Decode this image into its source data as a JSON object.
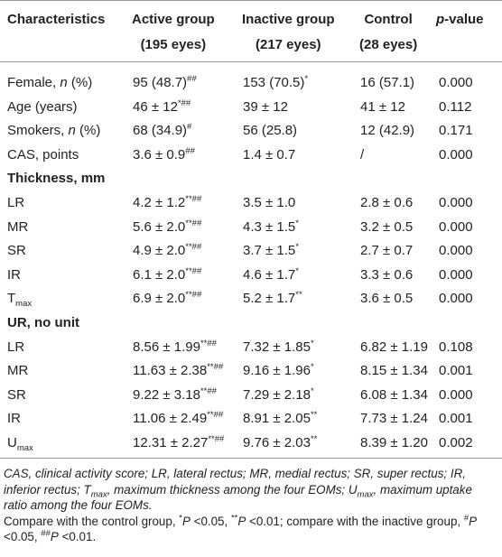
{
  "table": {
    "header": [
      [
        [
          {
            "t": "Characteristics"
          }
        ]
      ],
      [
        [
          {
            "t": "Active group"
          }
        ],
        [
          {
            "t": "(195 eyes)"
          }
        ]
      ],
      [
        [
          {
            "t": "Inactive group"
          }
        ],
        [
          {
            "t": "(217 eyes)"
          }
        ]
      ],
      [
        [
          {
            "t": "Control"
          }
        ],
        [
          {
            "t": "(28 eyes)"
          }
        ]
      ],
      [
        [
          {
            "t": "p",
            "s": "i"
          },
          {
            "t": "-value"
          }
        ]
      ]
    ],
    "rows": [
      {
        "cells": [
          [
            {
              "t": "Female, "
            },
            {
              "t": "n",
              "s": "i"
            },
            {
              "t": " (%)"
            }
          ],
          [
            {
              "t": "95 (48.7)"
            },
            {
              "t": "##",
              "s": "sup"
            }
          ],
          [
            {
              "t": "153 (70.5)"
            },
            {
              "t": "*",
              "s": "sup"
            }
          ],
          [
            {
              "t": "16 (57.1)"
            }
          ],
          [
            {
              "t": "0.000"
            }
          ]
        ]
      },
      {
        "cells": [
          [
            {
              "t": "Age (years)"
            }
          ],
          [
            {
              "t": "46 ± 12"
            },
            {
              "t": "*##",
              "s": "sup"
            }
          ],
          [
            {
              "t": "39 ± 12"
            }
          ],
          [
            {
              "t": "41 ± 12"
            }
          ],
          [
            {
              "t": "0.112"
            }
          ]
        ]
      },
      {
        "cells": [
          [
            {
              "t": "Smokers, "
            },
            {
              "t": "n",
              "s": "i"
            },
            {
              "t": " (%)"
            }
          ],
          [
            {
              "t": "68 (34.9)"
            },
            {
              "t": "#",
              "s": "sup"
            }
          ],
          [
            {
              "t": "56 (25.8)"
            }
          ],
          [
            {
              "t": "12 (42.9)"
            }
          ],
          [
            {
              "t": "0.171"
            }
          ]
        ]
      },
      {
        "cells": [
          [
            {
              "t": "CAS, points"
            }
          ],
          [
            {
              "t": "3.6 ± 0.9"
            },
            {
              "t": "##",
              "s": "sup"
            }
          ],
          [
            {
              "t": "1.4 ± 0.7"
            }
          ],
          [
            {
              "t": "/"
            }
          ],
          [
            {
              "t": "0.000"
            }
          ]
        ]
      },
      {
        "section": "Thickness, mm"
      },
      {
        "cells": [
          [
            {
              "t": "LR"
            }
          ],
          [
            {
              "t": "4.2 ± 1.2"
            },
            {
              "t": "**##",
              "s": "sup"
            }
          ],
          [
            {
              "t": "3.5 ± 1.0"
            }
          ],
          [
            {
              "t": "2.8 ± 0.6"
            }
          ],
          [
            {
              "t": "0.000"
            }
          ]
        ]
      },
      {
        "cells": [
          [
            {
              "t": "MR"
            }
          ],
          [
            {
              "t": "5.6 ± 2.0"
            },
            {
              "t": "**##",
              "s": "sup"
            }
          ],
          [
            {
              "t": "4.3 ± 1.5"
            },
            {
              "t": "*",
              "s": "sup"
            }
          ],
          [
            {
              "t": "3.2 ± 0.5"
            }
          ],
          [
            {
              "t": "0.000"
            }
          ]
        ]
      },
      {
        "cells": [
          [
            {
              "t": "SR"
            }
          ],
          [
            {
              "t": "4.9 ± 2.0"
            },
            {
              "t": "**##",
              "s": "sup"
            }
          ],
          [
            {
              "t": "3.7 ± 1.5"
            },
            {
              "t": "*",
              "s": "sup"
            }
          ],
          [
            {
              "t": "2.7 ± 0.7"
            }
          ],
          [
            {
              "t": "0.000"
            }
          ]
        ]
      },
      {
        "cells": [
          [
            {
              "t": "IR"
            }
          ],
          [
            {
              "t": "6.1 ± 2.0"
            },
            {
              "t": "**##",
              "s": "sup"
            }
          ],
          [
            {
              "t": "4.6 ± 1.7"
            },
            {
              "t": "*",
              "s": "sup"
            }
          ],
          [
            {
              "t": "3.3 ± 0.6"
            }
          ],
          [
            {
              "t": "0.000"
            }
          ]
        ]
      },
      {
        "cells": [
          [
            {
              "t": "T"
            },
            {
              "t": "max",
              "s": "sub"
            }
          ],
          [
            {
              "t": "6.9 ± 2.0"
            },
            {
              "t": "**##",
              "s": "sup"
            }
          ],
          [
            {
              "t": "5.2 ± 1.7"
            },
            {
              "t": "**",
              "s": "sup"
            }
          ],
          [
            {
              "t": "3.6 ± 0.5"
            }
          ],
          [
            {
              "t": "0.000"
            }
          ]
        ]
      },
      {
        "section": "UR, no unit"
      },
      {
        "cells": [
          [
            {
              "t": "LR"
            }
          ],
          [
            {
              "t": "8.56 ± 1.99"
            },
            {
              "t": "**##",
              "s": "sup"
            }
          ],
          [
            {
              "t": "7.32 ± 1.85"
            },
            {
              "t": "*",
              "s": "sup"
            }
          ],
          [
            {
              "t": "6.82 ± 1.19"
            }
          ],
          [
            {
              "t": "0.108"
            }
          ]
        ]
      },
      {
        "cells": [
          [
            {
              "t": "MR"
            }
          ],
          [
            {
              "t": "11.63 ± 2.38"
            },
            {
              "t": "**##",
              "s": "sup"
            }
          ],
          [
            {
              "t": "9.16 ± 1.96"
            },
            {
              "t": "*",
              "s": "sup"
            }
          ],
          [
            {
              "t": "8.15 ± 1.34"
            }
          ],
          [
            {
              "t": "0.001"
            }
          ]
        ]
      },
      {
        "cells": [
          [
            {
              "t": "SR"
            }
          ],
          [
            {
              "t": "9.22 ± 3.18"
            },
            {
              "t": "**##",
              "s": "sup"
            }
          ],
          [
            {
              "t": "7.29 ± 2.18"
            },
            {
              "t": "*",
              "s": "sup"
            }
          ],
          [
            {
              "t": "6.08 ± 1.34"
            }
          ],
          [
            {
              "t": "0.000"
            }
          ]
        ]
      },
      {
        "cells": [
          [
            {
              "t": "IR"
            }
          ],
          [
            {
              "t": "11.06 ± 2.49"
            },
            {
              "t": "**##",
              "s": "sup"
            }
          ],
          [
            {
              "t": "8.91 ± 2.05"
            },
            {
              "t": "**",
              "s": "sup"
            }
          ],
          [
            {
              "t": "7.73 ± 1.24"
            }
          ],
          [
            {
              "t": "0.001"
            }
          ]
        ]
      },
      {
        "cells": [
          [
            {
              "t": "U"
            },
            {
              "t": "max",
              "s": "sub"
            }
          ],
          [
            {
              "t": "12.31 ± 2.27"
            },
            {
              "t": "**##",
              "s": "sup"
            }
          ],
          [
            {
              "t": "9.76 ± 2.03"
            },
            {
              "t": "**",
              "s": "sup"
            }
          ],
          [
            {
              "t": "8.39 ± 1.20"
            }
          ],
          [
            {
              "t": "0.002"
            }
          ]
        ]
      }
    ],
    "notes": [
      [
        {
          "t": "CAS, clinical activity score; LR, lateral rectus; MR, medial rectus; SR, super rectus; IR, inferior rectus; T",
          "s": "i"
        },
        {
          "t": "max",
          "s": "isub"
        },
        {
          "t": ", maximum thickness among the four EOMs; U",
          "s": "i"
        },
        {
          "t": "max",
          "s": "isub"
        },
        {
          "t": ", maximum uptake ratio among the four EOMs.",
          "s": "i"
        }
      ],
      [
        {
          "t": "Compare with the control group, "
        },
        {
          "t": "*",
          "s": "sup"
        },
        {
          "t": "P",
          "s": "i"
        },
        {
          "t": " <0.05, "
        },
        {
          "t": "**",
          "s": "sup"
        },
        {
          "t": "P",
          "s": "i"
        },
        {
          "t": " <0.01; compare with the inactive group, "
        },
        {
          "t": "#",
          "s": "sup"
        },
        {
          "t": "P",
          "s": "i"
        },
        {
          "t": " <0.05, "
        },
        {
          "t": "##",
          "s": "sup"
        },
        {
          "t": "P",
          "s": "i"
        },
        {
          "t": " <0.01."
        }
      ]
    ]
  }
}
